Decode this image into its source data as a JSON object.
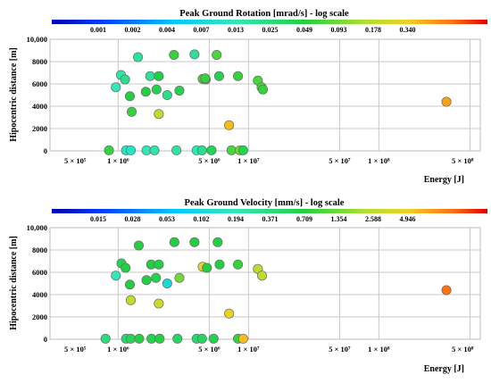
{
  "chart_data": [
    {
      "type": "scatter",
      "title": "Peak Ground Rotation [mrad/s] - log scale",
      "ylabel": "Hipocentric distance [m]",
      "xlabel": "Energy [J]",
      "xscale": "log",
      "xlim": [
        300000,
        600000000
      ],
      "ylim": [
        0,
        10000
      ],
      "yticks": [
        "0",
        "2000",
        "4000",
        "6000",
        "8000",
        "10,000"
      ],
      "xtick_labels": [
        "5 × 10⁵",
        "1 × 10⁶",
        "5 × 10⁶",
        "1 × 10⁷",
        "5 × 10⁷",
        "1 × 10⁸",
        "5 × 10⁸"
      ],
      "colorbar": {
        "scale": "log",
        "labels": [
          "0.001",
          "0.002",
          "0.004",
          "0.007",
          "0.013",
          "0.025",
          "0.049",
          "0.093",
          "0.178",
          "0.340"
        ]
      },
      "grid": true,
      "points": [
        {
          "x": 850000,
          "y": 50,
          "c": 0.6
        },
        {
          "x": 1150000,
          "y": 50,
          "c": 0.4
        },
        {
          "x": 1250000,
          "y": 50,
          "c": 0.4
        },
        {
          "x": 1650000,
          "y": 50,
          "c": 0.42
        },
        {
          "x": 1900000,
          "y": 50,
          "c": 0.44
        },
        {
          "x": 2800000,
          "y": 50,
          "c": 0.45
        },
        {
          "x": 4000000,
          "y": 50,
          "c": 0.42
        },
        {
          "x": 4400000,
          "y": 50,
          "c": 0.48
        },
        {
          "x": 5200000,
          "y": 50,
          "c": 0.55
        },
        {
          "x": 7400000,
          "y": 50,
          "c": 0.62
        },
        {
          "x": 8600000,
          "y": 50,
          "c": 0.67
        },
        {
          "x": 9100000,
          "y": 50,
          "c": 0.56
        },
        {
          "x": 960000,
          "y": 5700,
          "c": 0.42
        },
        {
          "x": 1050000,
          "y": 6800,
          "c": 0.44
        },
        {
          "x": 1130000,
          "y": 6400,
          "c": 0.48
        },
        {
          "x": 1230000,
          "y": 4900,
          "c": 0.58
        },
        {
          "x": 1270000,
          "y": 3500,
          "c": 0.6
        },
        {
          "x": 1420000,
          "y": 8400,
          "c": 0.46
        },
        {
          "x": 1630000,
          "y": 5300,
          "c": 0.58
        },
        {
          "x": 1760000,
          "y": 6700,
          "c": 0.46
        },
        {
          "x": 1970000,
          "y": 5500,
          "c": 0.56
        },
        {
          "x": 2050000,
          "y": 6700,
          "c": 0.58
        },
        {
          "x": 2050000,
          "y": 3300,
          "c": 0.74
        },
        {
          "x": 2380000,
          "y": 5000,
          "c": 0.48
        },
        {
          "x": 2680000,
          "y": 8600,
          "c": 0.6
        },
        {
          "x": 2950000,
          "y": 5400,
          "c": 0.56
        },
        {
          "x": 3850000,
          "y": 8650,
          "c": 0.47
        },
        {
          "x": 4450000,
          "y": 6450,
          "c": 0.62
        },
        {
          "x": 4700000,
          "y": 6400,
          "c": 0.58
        },
        {
          "x": 4650000,
          "y": 6500,
          "c": 0.6
        },
        {
          "x": 5700000,
          "y": 8600,
          "c": 0.62
        },
        {
          "x": 5950000,
          "y": 6700,
          "c": 0.56
        },
        {
          "x": 7100000,
          "y": 2300,
          "c": 0.84
        },
        {
          "x": 8300000,
          "y": 6700,
          "c": 0.6
        },
        {
          "x": 11800000,
          "y": 6300,
          "c": 0.62
        },
        {
          "x": 12600000,
          "y": 5700,
          "c": 0.62
        },
        {
          "x": 12900000,
          "y": 5500,
          "c": 0.6
        },
        {
          "x": 330000000,
          "y": 4400,
          "c": 0.87
        }
      ]
    },
    {
      "type": "scatter",
      "title": "Peak Ground Velocity [mm/s] - log scale",
      "ylabel": "Hipocentric distance [m]",
      "xlabel": "Energy [J]",
      "xscale": "log",
      "xlim": [
        300000,
        600000000
      ],
      "ylim": [
        0,
        10000
      ],
      "yticks": [
        "0",
        "2000",
        "4000",
        "6000",
        "8000",
        "10,000"
      ],
      "xtick_labels": [
        "5 × 10⁵",
        "1 × 10⁶",
        "5 × 10⁶",
        "1 × 10⁷",
        "5 × 10⁷",
        "1 × 10⁸",
        "5 × 10⁸"
      ],
      "colorbar": {
        "scale": "log",
        "labels": [
          "0.015",
          "0.028",
          "0.053",
          "0.102",
          "0.194",
          "0.371",
          "0.709",
          "1.354",
          "2.588",
          "4.946"
        ]
      },
      "grid": true,
      "points": [
        {
          "x": 800000,
          "y": 50,
          "c": 0.5
        },
        {
          "x": 1150000,
          "y": 50,
          "c": 0.52
        },
        {
          "x": 1250000,
          "y": 50,
          "c": 0.55
        },
        {
          "x": 1450000,
          "y": 50,
          "c": 0.58
        },
        {
          "x": 1800000,
          "y": 50,
          "c": 0.56
        },
        {
          "x": 2080000,
          "y": 50,
          "c": 0.58
        },
        {
          "x": 2850000,
          "y": 50,
          "c": 0.54
        },
        {
          "x": 4000000,
          "y": 50,
          "c": 0.52
        },
        {
          "x": 4400000,
          "y": 50,
          "c": 0.54
        },
        {
          "x": 5400000,
          "y": 50,
          "c": 0.56
        },
        {
          "x": 8300000,
          "y": 50,
          "c": 0.6
        },
        {
          "x": 9100000,
          "y": 50,
          "c": 0.84
        },
        {
          "x": 960000,
          "y": 5700,
          "c": 0.42
        },
        {
          "x": 1060000,
          "y": 6800,
          "c": 0.56
        },
        {
          "x": 1140000,
          "y": 6400,
          "c": 0.58
        },
        {
          "x": 1230000,
          "y": 4900,
          "c": 0.58
        },
        {
          "x": 1250000,
          "y": 3500,
          "c": 0.74
        },
        {
          "x": 1440000,
          "y": 8400,
          "c": 0.58
        },
        {
          "x": 1650000,
          "y": 5300,
          "c": 0.58
        },
        {
          "x": 1790000,
          "y": 6700,
          "c": 0.58
        },
        {
          "x": 1950000,
          "y": 5500,
          "c": 0.56
        },
        {
          "x": 2050000,
          "y": 6700,
          "c": 0.58
        },
        {
          "x": 2050000,
          "y": 3200,
          "c": 0.76
        },
        {
          "x": 2380000,
          "y": 5000,
          "c": 0.35
        },
        {
          "x": 2700000,
          "y": 8700,
          "c": 0.58
        },
        {
          "x": 2950000,
          "y": 5500,
          "c": 0.66
        },
        {
          "x": 3850000,
          "y": 8700,
          "c": 0.58
        },
        {
          "x": 4450000,
          "y": 6500,
          "c": 0.8
        },
        {
          "x": 4800000,
          "y": 6400,
          "c": 0.58
        },
        {
          "x": 5800000,
          "y": 8700,
          "c": 0.58
        },
        {
          "x": 6000000,
          "y": 6700,
          "c": 0.58
        },
        {
          "x": 7100000,
          "y": 2300,
          "c": 0.8
        },
        {
          "x": 8300000,
          "y": 6700,
          "c": 0.6
        },
        {
          "x": 11800000,
          "y": 6300,
          "c": 0.74
        },
        {
          "x": 12700000,
          "y": 5700,
          "c": 0.74
        },
        {
          "x": 330000000,
          "y": 4400,
          "c": 0.92
        }
      ]
    }
  ]
}
